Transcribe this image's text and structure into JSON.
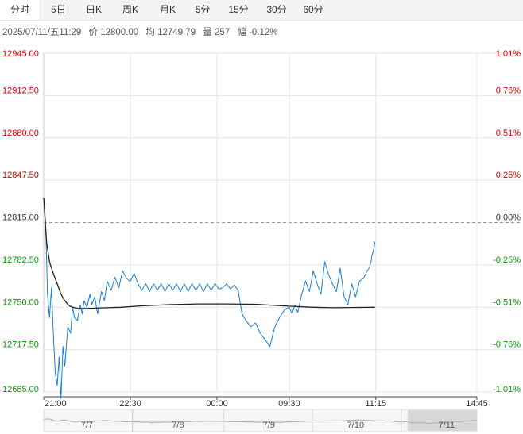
{
  "tabs": [
    {
      "label": "分时",
      "active": true
    },
    {
      "label": "5日"
    },
    {
      "label": "日K"
    },
    {
      "label": "周K"
    },
    {
      "label": "月K"
    },
    {
      "label": "5分"
    },
    {
      "label": "15分"
    },
    {
      "label": "30分"
    },
    {
      "label": "60分"
    }
  ],
  "info": {
    "datetime": "2025/07/11/五11:29",
    "price_label": "价 12800.00",
    "avg_label": "均 12749.79",
    "volume_label": "量 257",
    "change_label": "幅 -0.12%"
  },
  "colors": {
    "up": "#e00000",
    "down": "#0a9a0a",
    "price_line": "#1a7fd1",
    "avg_line": "#222222",
    "grid": "#e6e6e6",
    "baseline": "#999999",
    "nav_line": "#aaaaaa",
    "nav_highlight": "#cfcfcf"
  },
  "chart_data": {
    "type": "line",
    "ylim": [
      12685,
      12945
    ],
    "prev_close": 12815,
    "y_ticks": [
      "12945.00",
      "12912.50",
      "12880.00",
      "12847.50",
      "12815.00",
      "12782.50",
      "12750.00",
      "12717.50",
      "12685.00"
    ],
    "pct_ticks": [
      "1.01%",
      "0.76%",
      "0.51%",
      "0.25%",
      "0.00%",
      "-0.25%",
      "-0.51%",
      "-0.76%",
      "-1.01%"
    ],
    "x_ticks": [
      "21:00",
      "22:30",
      "00:00",
      "09:30",
      "11:15",
      "14:45"
    ],
    "x_tick_positions": [
      0,
      90,
      180,
      255,
      345,
      450
    ],
    "x_max": 450,
    "series": [
      {
        "name": "price",
        "x": [
          0,
          2,
          4,
          6,
          8,
          10,
          12,
          14,
          16,
          18,
          20,
          22,
          25,
          28,
          30,
          32,
          35,
          38,
          40,
          42,
          45,
          48,
          50,
          53,
          56,
          60,
          63,
          66,
          70,
          74,
          78,
          82,
          86,
          90,
          94,
          98,
          102,
          106,
          110,
          114,
          118,
          122,
          126,
          130,
          134,
          138,
          142,
          146,
          150,
          154,
          158,
          162,
          166,
          170,
          174,
          178,
          182,
          186,
          190,
          194,
          198,
          202,
          206,
          210,
          215,
          220,
          225,
          230,
          235,
          240,
          245,
          250,
          255,
          258,
          261,
          264,
          268,
          272,
          276,
          280,
          284,
          288,
          292,
          296,
          300,
          304,
          308,
          312,
          316,
          320,
          324,
          328,
          332,
          336,
          338,
          340,
          341,
          343,
          344
        ],
        "y": [
          12834,
          12815,
          12760,
          12742,
          12765,
          12730,
          12700,
          12690,
          12712,
          12680,
          12720,
          12705,
          12735,
          12730,
          12750,
          12742,
          12740,
          12752,
          12745,
          12755,
          12750,
          12760,
          12752,
          12758,
          12745,
          12762,
          12755,
          12770,
          12763,
          12773,
          12765,
          12778,
          12772,
          12770,
          12776,
          12768,
          12763,
          12768,
          12762,
          12768,
          12763,
          12768,
          12762,
          12768,
          12763,
          12768,
          12762,
          12768,
          12762,
          12768,
          12763,
          12768,
          12762,
          12768,
          12763,
          12768,
          12764,
          12765,
          12768,
          12764,
          12767,
          12763,
          12745,
          12740,
          12735,
          12738,
          12730,
          12725,
          12720,
          12735,
          12742,
          12748,
          12750,
          12745,
          12752,
          12746,
          12760,
          12770,
          12762,
          12778,
          12768,
          12760,
          12785,
          12775,
          12768,
          12762,
          12780,
          12758,
          12752,
          12768,
          12758,
          12770,
          12772,
          12778,
          12780,
          12785,
          12790,
          12795,
          12800
        ]
      },
      {
        "name": "average",
        "x": [
          0,
          3,
          6,
          9,
          12,
          15,
          18,
          21,
          24,
          27,
          30,
          33,
          36,
          40,
          50,
          60,
          80,
          100,
          130,
          160,
          190,
          220,
          250,
          280,
          300,
          320,
          344
        ],
        "y": [
          12834,
          12800,
          12785,
          12778,
          12772,
          12766,
          12760,
          12756,
          12753,
          12751,
          12750,
          12749.5,
          12749,
          12749,
          12749.2,
          12749.5,
          12750,
          12751,
          12752,
          12752.5,
          12752.5,
          12752.3,
          12751,
          12750,
          12749.6,
          12749.8,
          12750
        ]
      }
    ],
    "navigator": {
      "labels": [
        "7/7",
        "7/8",
        "7/9",
        "7/10",
        "7/11"
      ],
      "label_positions": [
        0.1,
        0.31,
        0.52,
        0.72,
        0.93
      ],
      "highlight_range": [
        0.84,
        1.0
      ]
    }
  }
}
